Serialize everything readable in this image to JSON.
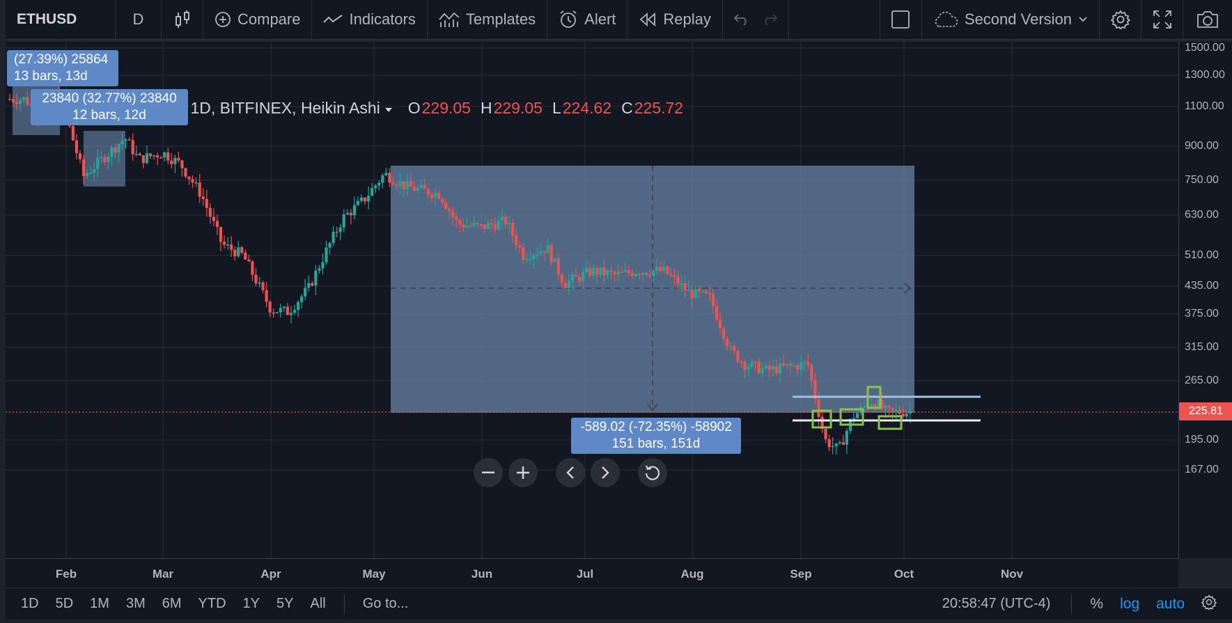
{
  "toolbar": {
    "symbol": "ETHUSD",
    "interval": "D",
    "compare": "Compare",
    "indicators": "Indicators",
    "templates": "Templates",
    "alert": "Alert",
    "replay": "Replay",
    "layout_name": "Second Version",
    "icons": [
      "candles-icon",
      "compare-plus-icon",
      "indicators-icon",
      "templates-icon",
      "alert-icon",
      "replay-icon",
      "undo-icon",
      "redo-icon",
      "layout-box-icon",
      "cloud-icon",
      "chevron-down-icon",
      "gear-icon",
      "fullscreen-icon",
      "camera-icon"
    ]
  },
  "legend": {
    "title": "Ethereum / Dollar, 1D, BITFINEX, Heikin Ashi",
    "ohlc": [
      {
        "k": "O",
        "v": "229.05"
      },
      {
        "k": "H",
        "v": "229.05"
      },
      {
        "k": "L",
        "v": "224.62"
      },
      {
        "k": "C",
        "v": "225.72"
      }
    ]
  },
  "measures": {
    "m1_line1": "(27.39%) 25864",
    "m1_line2": "13 bars, 13d",
    "m2_line1": "23840 (32.77%) 23840",
    "m2_line2": "12 bars, 12d",
    "main_line1": "-589.02 (-72.35%) -58902",
    "main_line2": "151 bars, 151d"
  },
  "price_scale": {
    "ticks": [
      "1500.00",
      "1300.00",
      "1100.00",
      "900.00",
      "750.00",
      "630.00",
      "510.00",
      "435.00",
      "375.00",
      "315.00",
      "265.00",
      "195.00",
      "167.00"
    ],
    "last_price": "225.81"
  },
  "time_scale": {
    "ticks": [
      "Feb",
      "Mar",
      "Apr",
      "May",
      "Jun",
      "Jul",
      "Aug",
      "Sep",
      "Oct",
      "Nov"
    ]
  },
  "bottom": {
    "ranges": [
      "1D",
      "5D",
      "1M",
      "3M",
      "6M",
      "YTD",
      "1Y",
      "5Y",
      "All"
    ],
    "goto": "Go to...",
    "clock": "20:58:47 (UTC-4)",
    "percent": "%",
    "log": "log",
    "auto": "auto"
  },
  "colors": {
    "up": "#26a69a",
    "down": "#ef5350",
    "background": "#131722",
    "measure_fill": "#6a87ab",
    "accent": "#2196f3"
  },
  "chart_data": {
    "type": "candlestick",
    "title": "Ethereum / Dollar, 1D, BITFINEX, Heikin Ashi",
    "y_scale": "log",
    "ylim": [
      150,
      1560
    ],
    "x_ticks": [
      "Feb",
      "Mar",
      "Apr",
      "May",
      "Jun",
      "Jul",
      "Aug",
      "Sep",
      "Oct",
      "Nov"
    ],
    "series": [
      {
        "name": "ETHUSD",
        "points": [
          {
            "date": "Jan 20",
            "c": 1150
          },
          {
            "date": "Jan 25",
            "c": 1050
          },
          {
            "date": "Jan 30",
            "c": 1190
          },
          {
            "date": "Feb 3",
            "c": 930
          },
          {
            "date": "Feb 6",
            "c": 770
          },
          {
            "date": "Feb 12",
            "c": 850
          },
          {
            "date": "Feb 18",
            "c": 940
          },
          {
            "date": "Feb 22",
            "c": 840
          },
          {
            "date": "Mar 1",
            "c": 870
          },
          {
            "date": "Mar 6",
            "c": 820
          },
          {
            "date": "Mar 12",
            "c": 700
          },
          {
            "date": "Mar 18",
            "c": 540
          },
          {
            "date": "Mar 24",
            "c": 510
          },
          {
            "date": "Apr 1",
            "c": 385
          },
          {
            "date": "Apr 6",
            "c": 380
          },
          {
            "date": "Apr 12",
            "c": 430
          },
          {
            "date": "Apr 17",
            "c": 520
          },
          {
            "date": "Apr 22",
            "c": 620
          },
          {
            "date": "Apr 28",
            "c": 680
          },
          {
            "date": "May 4",
            "c": 780
          },
          {
            "date": "May 10",
            "c": 730
          },
          {
            "date": "May 20",
            "c": 700
          },
          {
            "date": "May 25",
            "c": 600
          },
          {
            "date": "Jun 1",
            "c": 590
          },
          {
            "date": "Jun 8",
            "c": 610
          },
          {
            "date": "Jun 13",
            "c": 510
          },
          {
            "date": "Jun 20",
            "c": 530
          },
          {
            "date": "Jun 25",
            "c": 440
          },
          {
            "date": "Jul 3",
            "c": 470
          },
          {
            "date": "Jul 10",
            "c": 460
          },
          {
            "date": "Jul 16",
            "c": 470
          },
          {
            "date": "Jul 24",
            "c": 470
          },
          {
            "date": "Jul 31",
            "c": 420
          },
          {
            "date": "Aug 6",
            "c": 410
          },
          {
            "date": "Aug 12",
            "c": 310
          },
          {
            "date": "Aug 16",
            "c": 290
          },
          {
            "date": "Aug 22",
            "c": 280
          },
          {
            "date": "Aug 28",
            "c": 285
          },
          {
            "date": "Sep 3",
            "c": 290
          },
          {
            "date": "Sep 8",
            "c": 195
          },
          {
            "date": "Sep 12",
            "c": 185
          },
          {
            "date": "Sep 16",
            "c": 220
          },
          {
            "date": "Sep 22",
            "c": 240
          },
          {
            "date": "Sep 26",
            "c": 225
          },
          {
            "date": "Oct 1",
            "c": 226
          }
        ]
      }
    ]
  }
}
